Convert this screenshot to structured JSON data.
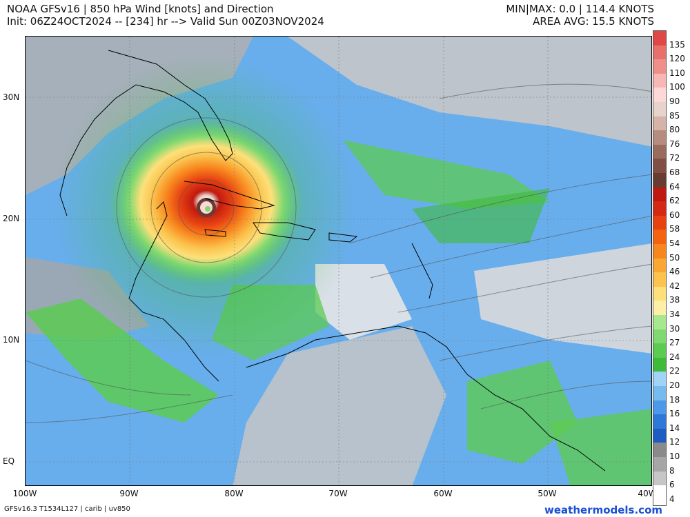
{
  "header": {
    "title_line1": "NOAA GFSv16 | 850 hPa Wind [knots] and Direction",
    "title_line2": "Init: 06Z24OCT2024 -- [234] hr --> Valid Sun 00Z03NOV2024",
    "stat_line1": "MIN|MAX: 0.0 | 114.4 KNOTS",
    "stat_line2": "AREA AVG: 15.5 KNOTS"
  },
  "axes": {
    "lat_labels": [
      "30N",
      "20N",
      "10N",
      "EQ"
    ],
    "lon_labels": [
      "100W",
      "90W",
      "80W",
      "70W",
      "60W",
      "50W",
      "40W"
    ]
  },
  "colorbar": {
    "labels": [
      "135",
      "120",
      "110",
      "100",
      "90",
      "85",
      "80",
      "76",
      "72",
      "68",
      "64",
      "62",
      "60",
      "58",
      "54",
      "50",
      "46",
      "42",
      "38",
      "34",
      "30",
      "27",
      "24",
      "22",
      "20",
      "18",
      "16",
      "14",
      "12",
      "10",
      "8",
      "6",
      "4"
    ],
    "colors": [
      "#e04848",
      "#e8706a",
      "#ef8f8a",
      "#f7b8b5",
      "#fcd8d6",
      "#e8d2cc",
      "#d5b3a8",
      "#b78c80",
      "#9a6b5f",
      "#805046",
      "#683c32",
      "#c01a10",
      "#d52a12",
      "#e84212",
      "#f4630f",
      "#f8861e",
      "#faa632",
      "#fbc34d",
      "#fde07a",
      "#fdf0a6",
      "#a7e88e",
      "#7fd870",
      "#5ccb52",
      "#3fbb3a",
      "#9fd4f6",
      "#77baf0",
      "#4d98e8",
      "#2e78d8",
      "#1e5cc4",
      "#8a8a8a",
      "#a6a6a6",
      "#c6c6c6",
      "#ffffff"
    ]
  },
  "map": {
    "storm_center": {
      "lat": 21.2,
      "lon": -81.0
    },
    "max_wind_knots": 114.4
  },
  "footer": {
    "left": "GFSv16.3 T1534L127 | carib | uv850",
    "right": "weathermodels.com"
  }
}
